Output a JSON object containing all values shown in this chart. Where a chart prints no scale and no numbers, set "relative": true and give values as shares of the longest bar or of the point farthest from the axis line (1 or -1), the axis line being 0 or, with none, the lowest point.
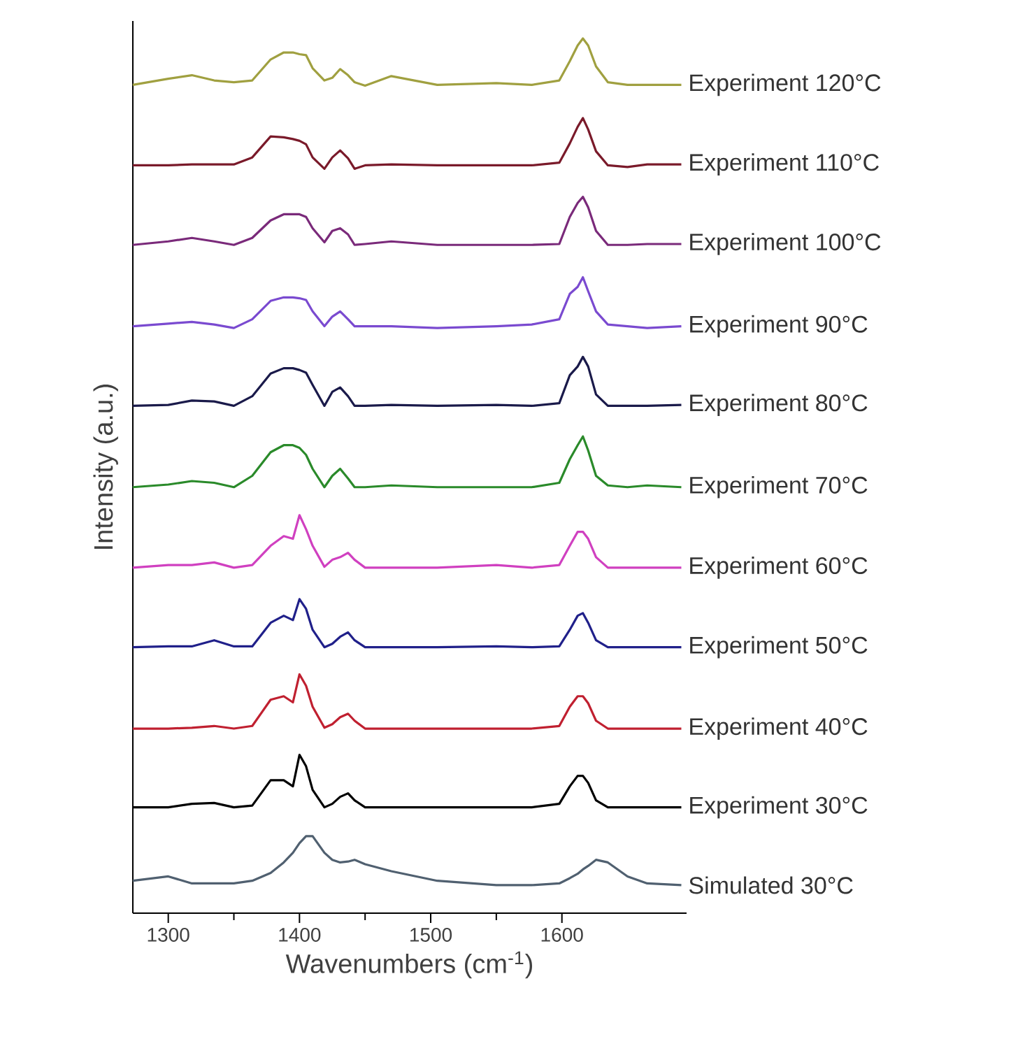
{
  "chart_data": {
    "type": "line",
    "relative": true,
    "xlabel": "Wavenumbers (cm$^{-1}$)",
    "ylabel": "Intensity (a.u.)",
    "xlim": [
      1273,
      1695
    ],
    "xticks": [
      1300,
      1400,
      1500,
      1600
    ],
    "legend": false,
    "grid": false,
    "x": [
      1273,
      1300,
      1318,
      1335,
      1350,
      1364,
      1378,
      1388,
      1395,
      1400,
      1405,
      1410,
      1419,
      1425,
      1431,
      1437,
      1442,
      1450,
      1470,
      1505,
      1550,
      1577,
      1598,
      1606,
      1612,
      1616,
      1620,
      1626,
      1635,
      1650,
      1665,
      1691
    ],
    "series": [
      {
        "name": "Experiment 120°C",
        "color": "#a0a040",
        "values": [
          0.947,
          0.954,
          0.958,
          0.952,
          0.95,
          0.952,
          0.976,
          0.984,
          0.984,
          0.982,
          0.981,
          0.966,
          0.952,
          0.955,
          0.965,
          0.958,
          0.95,
          0.946,
          0.957,
          0.947,
          0.949,
          0.947,
          0.952,
          0.974,
          0.992,
          1,
          0.992,
          0.968,
          0.95,
          0.947,
          0.947,
          0.947
        ]
      },
      {
        "name": "Experiment 110°C",
        "color": "#7a1a2a",
        "values": [
          0.855,
          0.855,
          0.856,
          0.856,
          0.856,
          0.864,
          0.888,
          0.887,
          0.885,
          0.883,
          0.879,
          0.864,
          0.851,
          0.864,
          0.872,
          0.863,
          0.851,
          0.855,
          0.856,
          0.855,
          0.855,
          0.855,
          0.858,
          0.88,
          0.899,
          0.909,
          0.896,
          0.871,
          0.855,
          0.853,
          0.856,
          0.856
        ]
      },
      {
        "name": "Experiment 100°C",
        "color": "#7a2a7a",
        "values": [
          0.764,
          0.768,
          0.772,
          0.768,
          0.764,
          0.772,
          0.792,
          0.799,
          0.799,
          0.799,
          0.796,
          0.783,
          0.767,
          0.78,
          0.783,
          0.776,
          0.764,
          0.765,
          0.768,
          0.764,
          0.764,
          0.764,
          0.765,
          0.796,
          0.812,
          0.819,
          0.807,
          0.78,
          0.764,
          0.764,
          0.765,
          0.765
        ]
      },
      {
        "name": "Experiment 90°C",
        "color": "#7a4ad0",
        "values": [
          0.671,
          0.674,
          0.676,
          0.673,
          0.669,
          0.679,
          0.7,
          0.704,
          0.704,
          0.703,
          0.701,
          0.688,
          0.671,
          0.682,
          0.688,
          0.679,
          0.671,
          0.671,
          0.671,
          0.669,
          0.671,
          0.673,
          0.679,
          0.708,
          0.716,
          0.727,
          0.711,
          0.688,
          0.673,
          0.671,
          0.669,
          0.671
        ]
      },
      {
        "name": "Experiment 80°C",
        "color": "#1a1a4a",
        "values": [
          0.58,
          0.581,
          0.586,
          0.585,
          0.58,
          0.591,
          0.617,
          0.623,
          0.623,
          0.621,
          0.618,
          0.604,
          0.58,
          0.596,
          0.601,
          0.591,
          0.58,
          0.58,
          0.581,
          0.58,
          0.581,
          0.58,
          0.583,
          0.615,
          0.625,
          0.636,
          0.625,
          0.593,
          0.58,
          0.58,
          0.58,
          0.581
        ]
      },
      {
        "name": "Experiment 70°C",
        "color": "#2a8a2a",
        "values": [
          0.487,
          0.49,
          0.494,
          0.492,
          0.487,
          0.5,
          0.527,
          0.535,
          0.535,
          0.532,
          0.524,
          0.508,
          0.487,
          0.5,
          0.508,
          0.497,
          0.487,
          0.487,
          0.489,
          0.487,
          0.487,
          0.487,
          0.492,
          0.519,
          0.535,
          0.545,
          0.529,
          0.5,
          0.489,
          0.487,
          0.489,
          0.487
        ]
      },
      {
        "name": "Experiment 60°C",
        "color": "#d040c0",
        "values": [
          0.395,
          0.398,
          0.398,
          0.401,
          0.395,
          0.398,
          0.42,
          0.431,
          0.428,
          0.455,
          0.439,
          0.42,
          0.396,
          0.404,
          0.407,
          0.412,
          0.404,
          0.395,
          0.395,
          0.395,
          0.398,
          0.395,
          0.398,
          0.42,
          0.436,
          0.436,
          0.428,
          0.407,
          0.395,
          0.395,
          0.395,
          0.395
        ]
      },
      {
        "name": "Experiment 50°C",
        "color": "#20208a",
        "values": [
          0.304,
          0.305,
          0.305,
          0.312,
          0.305,
          0.305,
          0.332,
          0.34,
          0.335,
          0.359,
          0.348,
          0.324,
          0.304,
          0.308,
          0.316,
          0.321,
          0.312,
          0.304,
          0.304,
          0.304,
          0.305,
          0.304,
          0.305,
          0.324,
          0.34,
          0.343,
          0.332,
          0.312,
          0.304,
          0.304,
          0.304,
          0.304
        ]
      },
      {
        "name": "Experiment 40°C",
        "color": "#c02030",
        "values": [
          0.211,
          0.211,
          0.212,
          0.214,
          0.211,
          0.214,
          0.244,
          0.248,
          0.241,
          0.273,
          0.26,
          0.236,
          0.212,
          0.216,
          0.224,
          0.228,
          0.22,
          0.211,
          0.211,
          0.211,
          0.211,
          0.211,
          0.214,
          0.236,
          0.248,
          0.248,
          0.24,
          0.22,
          0.211,
          0.211,
          0.211,
          0.211
        ]
      },
      {
        "name": "Experiment 30°C",
        "color": "#000000",
        "values": [
          0.121,
          0.121,
          0.125,
          0.126,
          0.121,
          0.123,
          0.152,
          0.152,
          0.145,
          0.181,
          0.168,
          0.141,
          0.121,
          0.125,
          0.133,
          0.137,
          0.129,
          0.121,
          0.121,
          0.121,
          0.121,
          0.121,
          0.125,
          0.145,
          0.157,
          0.157,
          0.149,
          0.129,
          0.121,
          0.121,
          0.121,
          0.121
        ]
      },
      {
        "name": "Simulated 30°C",
        "color": "#506070",
        "values": [
          0.037,
          0.042,
          0.034,
          0.034,
          0.034,
          0.037,
          0.046,
          0.058,
          0.069,
          0.08,
          0.088,
          0.088,
          0.069,
          0.061,
          0.058,
          0.059,
          0.061,
          0.056,
          0.048,
          0.037,
          0.032,
          0.032,
          0.034,
          0.04,
          0.045,
          0.05,
          0.054,
          0.061,
          0.058,
          0.042,
          0.034,
          0.032
        ]
      }
    ]
  }
}
